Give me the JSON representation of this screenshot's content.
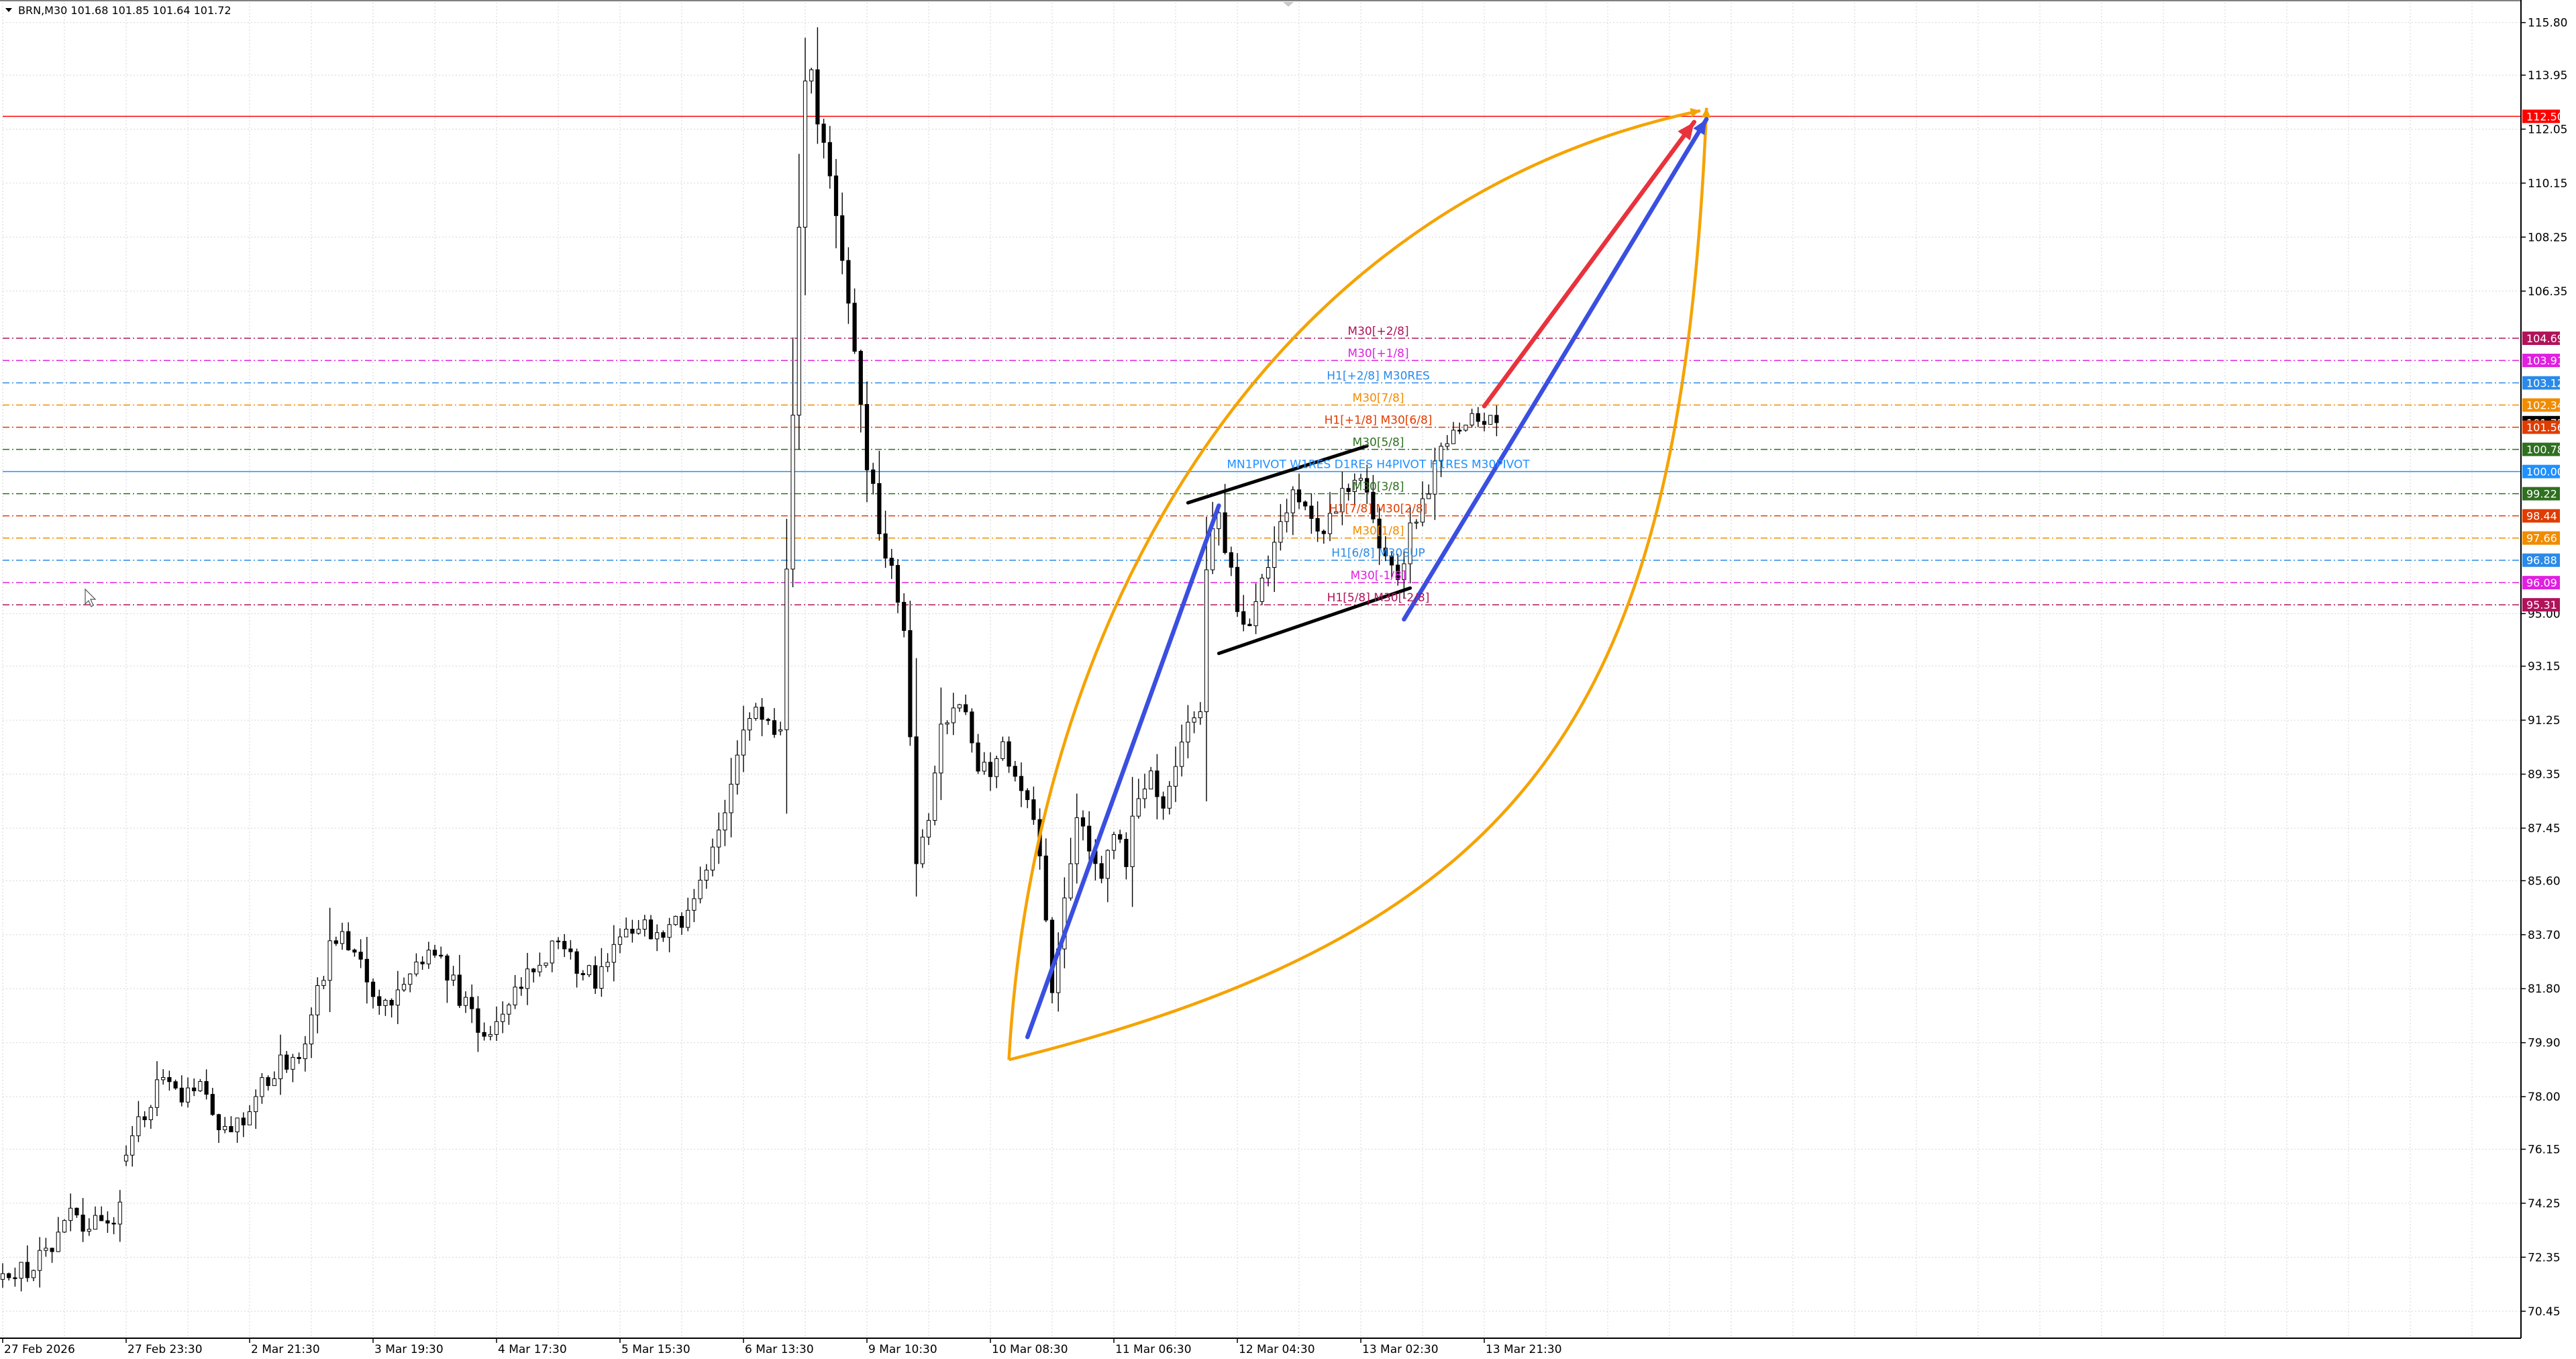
{
  "header": {
    "symbol_info": "BRN,M30  101.68 101.85 101.64 101.72"
  },
  "chart_data": {
    "type": "candlestick",
    "symbol": "BRN",
    "timeframe": "M30",
    "ohlc_current": {
      "open": 101.68,
      "high": 101.85,
      "low": 101.64,
      "close": 101.72
    },
    "ylim": [
      69.5,
      116.5
    ],
    "grid": true,
    "y_ticks": [
      70.45,
      72.35,
      74.25,
      76.15,
      78.0,
      79.9,
      81.8,
      83.7,
      85.6,
      87.45,
      89.35,
      91.25,
      93.15,
      95.0,
      106.35,
      108.25,
      110.15,
      112.05,
      113.95,
      115.8
    ],
    "x_axis": {
      "n_bars": 245,
      "tick_labels": [
        {
          "bar": 0,
          "label": "27 Feb 2026"
        },
        {
          "bar": 20,
          "label": "27 Feb 23:30"
        },
        {
          "bar": 40,
          "label": "2 Mar 21:30"
        },
        {
          "bar": 60,
          "label": "3 Mar 19:30"
        },
        {
          "bar": 80,
          "label": "4 Mar 17:30"
        },
        {
          "bar": 100,
          "label": "5 Mar 15:30"
        },
        {
          "bar": 120,
          "label": "6 Mar 13:30"
        },
        {
          "bar": 140,
          "label": "9 Mar 10:30"
        },
        {
          "bar": 160,
          "label": "10 Mar 08:30"
        },
        {
          "bar": 180,
          "label": "11 Mar 06:30"
        },
        {
          "bar": 200,
          "label": "12 Mar 04:30"
        },
        {
          "bar": 220,
          "label": "13 Mar 02:30"
        },
        {
          "bar": 240,
          "label": "13 Mar 21:30"
        }
      ]
    },
    "price_path": [
      [
        0,
        71.4
      ],
      [
        5,
        72.1
      ],
      [
        8,
        72.5
      ],
      [
        11,
        73.8
      ],
      [
        14,
        73.3
      ],
      [
        17,
        73.7
      ],
      [
        19,
        73.9
      ],
      [
        20,
        76.1
      ],
      [
        23,
        77.3
      ],
      [
        26,
        78.8
      ],
      [
        29,
        78.2
      ],
      [
        32,
        78.6
      ],
      [
        35,
        77.2
      ],
      [
        37,
        76.9
      ],
      [
        39,
        77.4
      ],
      [
        42,
        78.6
      ],
      [
        45,
        79.1
      ],
      [
        48,
        79.5
      ],
      [
        50,
        80.8
      ],
      [
        53,
        83.1
      ],
      [
        55,
        83.9
      ],
      [
        57,
        83.2
      ],
      [
        59,
        82.1
      ],
      [
        61,
        80.9
      ],
      [
        63,
        81.5
      ],
      [
        66,
        82.6
      ],
      [
        69,
        83.1
      ],
      [
        72,
        82.4
      ],
      [
        75,
        81.1
      ],
      [
        78,
        80.3
      ],
      [
        81,
        80.6
      ],
      [
        84,
        81.9
      ],
      [
        87,
        82.8
      ],
      [
        90,
        83.3
      ],
      [
        93,
        82.6
      ],
      [
        96,
        82.1
      ],
      [
        98,
        82.7
      ],
      [
        100,
        83.5
      ],
      [
        103,
        84.1
      ],
      [
        106,
        83.5
      ],
      [
        108,
        83.8
      ],
      [
        110,
        84.3
      ],
      [
        113,
        85.5
      ],
      [
        116,
        87.2
      ],
      [
        119,
        89.8
      ],
      [
        121,
        91.4
      ],
      [
        123,
        91.6
      ],
      [
        125,
        91.1
      ],
      [
        126,
        91.2
      ],
      [
        128,
        102.0
      ],
      [
        129,
        108.2
      ],
      [
        130,
        113.5
      ],
      [
        131,
        114.0
      ],
      [
        132,
        112.2
      ],
      [
        134,
        110.3
      ],
      [
        136,
        107.5
      ],
      [
        138,
        104.1
      ],
      [
        140,
        100.3
      ],
      [
        142,
        98.1
      ],
      [
        144,
        96.4
      ],
      [
        146,
        94.1
      ],
      [
        147,
        91.0
      ],
      [
        148,
        86.2
      ],
      [
        150,
        88.0
      ],
      [
        152,
        90.8
      ],
      [
        154,
        91.9
      ],
      [
        156,
        91.2
      ],
      [
        158,
        89.8
      ],
      [
        160,
        89.0
      ],
      [
        162,
        90.5
      ],
      [
        164,
        89.2
      ],
      [
        166,
        88.5
      ],
      [
        168,
        86.5
      ],
      [
        169,
        84.3
      ],
      [
        170,
        81.8
      ],
      [
        172,
        84.6
      ],
      [
        174,
        87.7
      ],
      [
        176,
        86.9
      ],
      [
        178,
        86.0
      ],
      [
        180,
        87.3
      ],
      [
        182,
        86.4
      ],
      [
        184,
        88.7
      ],
      [
        186,
        89.4
      ],
      [
        188,
        88.2
      ],
      [
        190,
        89.8
      ],
      [
        192,
        91.3
      ],
      [
        194,
        91.9
      ],
      [
        195,
        96.8
      ],
      [
        197,
        98.4
      ],
      [
        199,
        96.3
      ],
      [
        200,
        95.2
      ],
      [
        202,
        94.4
      ],
      [
        204,
        95.9
      ],
      [
        206,
        97.6
      ],
      [
        208,
        98.8
      ],
      [
        210,
        99.3
      ],
      [
        212,
        98.6
      ],
      [
        214,
        97.9
      ],
      [
        216,
        98.7
      ],
      [
        218,
        99.4
      ],
      [
        220,
        100.1
      ],
      [
        222,
        98.1
      ],
      [
        224,
        97.1
      ],
      [
        226,
        96.1
      ],
      [
        228,
        97.8
      ],
      [
        230,
        98.9
      ],
      [
        232,
        100.3
      ],
      [
        234,
        101.0
      ],
      [
        236,
        101.4
      ],
      [
        238,
        101.7
      ],
      [
        240,
        101.6
      ],
      [
        242,
        101.72
      ]
    ],
    "gap_after_bars": [
      19,
      125
    ],
    "horizontal_levels": [
      {
        "price": 112.5,
        "badge": "112.50",
        "color": "#ff0000",
        "style": "solid"
      },
      {
        "price": 104.69,
        "badge": "104.69",
        "color": "#b0135a",
        "style": "dashdot"
      },
      {
        "price": 103.91,
        "badge": "103.91",
        "color": "#e020e0",
        "style": "dashdot"
      },
      {
        "price": 103.12,
        "badge": "103.12",
        "color": "#2a8ae8",
        "style": "dashdot"
      },
      {
        "price": 102.34,
        "badge": "102.34",
        "color": "#f08c00",
        "style": "dashdot"
      },
      {
        "price": 101.72,
        "badge": "101.72",
        "color": "#000000",
        "style": "none"
      },
      {
        "price": 101.56,
        "badge": "101.56",
        "color": "#e03c00",
        "style": "dashdot"
      },
      {
        "price": 100.78,
        "badge": "100.78",
        "color": "#2f6f20",
        "style": "dashdot"
      },
      {
        "price": 100.0,
        "badge": "100.00",
        "color": "#1e90ff",
        "style": "solid"
      },
      {
        "price": 99.22,
        "badge": "99.22",
        "color": "#2f6f20",
        "style": "dashdot"
      },
      {
        "price": 98.44,
        "badge": "98.44",
        "color": "#e03c00",
        "style": "dashdot"
      },
      {
        "price": 97.66,
        "badge": "97.66",
        "color": "#f08c00",
        "style": "dashdot"
      },
      {
        "price": 96.88,
        "badge": "96.88",
        "color": "#2a8ae8",
        "style": "dashdot"
      },
      {
        "price": 96.09,
        "badge": "96.09",
        "color": "#e020e0",
        "style": "dashdot"
      },
      {
        "price": 95.31,
        "badge": "95.31",
        "color": "#b0135a",
        "style": "dashdot"
      }
    ],
    "level_labels": [
      {
        "text": "M30[+2/8]",
        "price": 104.69,
        "color": "#b0135a"
      },
      {
        "text": "M30[+1/8]",
        "price": 103.91,
        "color": "#e020e0"
      },
      {
        "text": "H1[+2/8] M30RES",
        "price": 103.12,
        "color": "#2a8ae8"
      },
      {
        "text": "M30[7/8]",
        "price": 102.34,
        "color": "#f08c00"
      },
      {
        "text": "H1[+1/8] M30[6/8]",
        "price": 101.56,
        "color": "#e03c00"
      },
      {
        "text": "M30[5/8]",
        "price": 100.78,
        "color": "#2f6f20"
      },
      {
        "text": "MN1PIVOT W1RES D1RES H4PIVOT H1RES M30PIVOT",
        "price": 100.0,
        "color": "#1e90ff"
      },
      {
        "text": "M30[3/8]",
        "price": 99.22,
        "color": "#2f6f20"
      },
      {
        "text": "H1[7/8] M30[2/8]",
        "price": 98.44,
        "color": "#e03c00"
      },
      {
        "text": "M30[1/8]",
        "price": 97.66,
        "color": "#f08c00"
      },
      {
        "text": "H1[6/8] M30SUP",
        "price": 96.88,
        "color": "#2a8ae8"
      },
      {
        "text": "M30[-1/8]",
        "price": 96.09,
        "color": "#e020e0"
      },
      {
        "text": "H1[5/8] M30[-2/8]",
        "price": 95.31,
        "color": "#b0135a"
      }
    ],
    "annotations": {
      "blue_trend_1": {
        "from": [
          166,
          80.1
        ],
        "to": [
          197,
          98.8
        ],
        "color": "#3a4fe0"
      },
      "blue_trend_2": {
        "from": [
          227,
          94.8
        ],
        "to": [
          276,
          112.4
        ],
        "color": "#3a4fe0"
      },
      "red_arrow": {
        "from": [
          240,
          102.3
        ],
        "to": [
          274,
          112.3
        ],
        "color": "#e8323c"
      },
      "channel_upper": {
        "from": [
          192,
          98.9
        ],
        "to": [
          221,
          100.9
        ],
        "color": "#000000"
      },
      "channel_lower": {
        "from": [
          197,
          93.6
        ],
        "to": [
          228,
          95.9
        ],
        "color": "#000000"
      },
      "orange_arc_top": {
        "path": [
          [
            163,
            79.3
          ],
          [
            167,
            95.0
          ],
          [
            205,
            109.5
          ],
          [
            275,
            112.7
          ]
        ],
        "color": "#f5a300"
      },
      "orange_arc_bottom": {
        "path": [
          [
            163,
            79.3
          ],
          [
            250,
            84.0
          ],
          [
            272,
            92.0
          ],
          [
            276,
            112.8
          ]
        ],
        "color": "#f5a300"
      }
    }
  }
}
